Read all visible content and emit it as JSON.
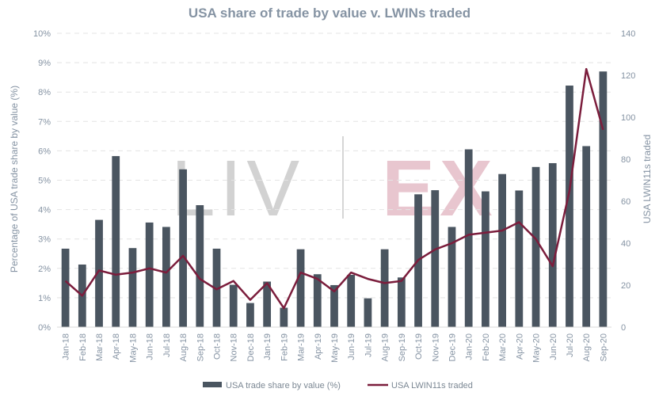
{
  "chart_data": {
    "type": "bar",
    "title": "USA share of trade by value v. LWINs traded",
    "ylabel_left": "Percentage of USA trade share by value (%)",
    "ylabel_right": "USA LWIN11s traded",
    "y_left_ticks": [
      "0%",
      "1%",
      "2%",
      "3%",
      "4%",
      "5%",
      "6%",
      "7%",
      "8%",
      "9%",
      "10%"
    ],
    "y_right_ticks": [
      "0",
      "20",
      "40",
      "60",
      "80",
      "100",
      "120",
      "140"
    ],
    "ylim_left": [
      0,
      10
    ],
    "ylim_right": [
      0,
      140
    ],
    "grid": true,
    "legend_position": "bottom",
    "watermark": "LIV|EX",
    "categories": [
      "Jan-18",
      "Feb-18",
      "Mar-18",
      "Apr-18",
      "May-18",
      "Jun-18",
      "Jul-18",
      "Aug-18",
      "Sep-18",
      "Oct-18",
      "Nov-18",
      "Dec-18",
      "Jan-19",
      "Feb-19",
      "Mar-19",
      "Apr-19",
      "May-19",
      "Jun-19",
      "Jul-19",
      "Aug-19",
      "Sep-19",
      "Oct-19",
      "Nov-19",
      "Dec-19",
      "Jan-20",
      "Feb-20",
      "Mar-20",
      "Apr-20",
      "May-20",
      "Jun-20",
      "Jul-20",
      "Aug-20",
      "Sep-20"
    ],
    "series": [
      {
        "name": "USA trade share by value (%)",
        "type": "bar",
        "axis": "left",
        "color": "#4a5560",
        "values": [
          2.67,
          2.13,
          3.65,
          5.82,
          2.69,
          3.56,
          3.41,
          5.37,
          4.15,
          2.67,
          1.44,
          0.82,
          1.55,
          0.66,
          2.65,
          1.8,
          1.43,
          1.78,
          0.98,
          2.65,
          1.69,
          4.52,
          4.66,
          3.41,
          6.05,
          4.62,
          5.21,
          4.65,
          5.45,
          5.58,
          8.22,
          6.16,
          8.7
        ]
      },
      {
        "name": "USA LWIN11s traded",
        "type": "line",
        "axis": "right",
        "color": "#7b1d3c",
        "values": [
          22,
          15,
          27,
          25,
          26,
          28,
          26,
          34,
          23,
          18,
          22,
          13,
          21,
          9,
          26,
          23,
          17,
          26,
          23,
          21,
          22,
          32,
          37,
          40,
          44,
          45,
          46,
          50,
          42,
          29,
          65,
          123,
          94
        ]
      }
    ]
  }
}
